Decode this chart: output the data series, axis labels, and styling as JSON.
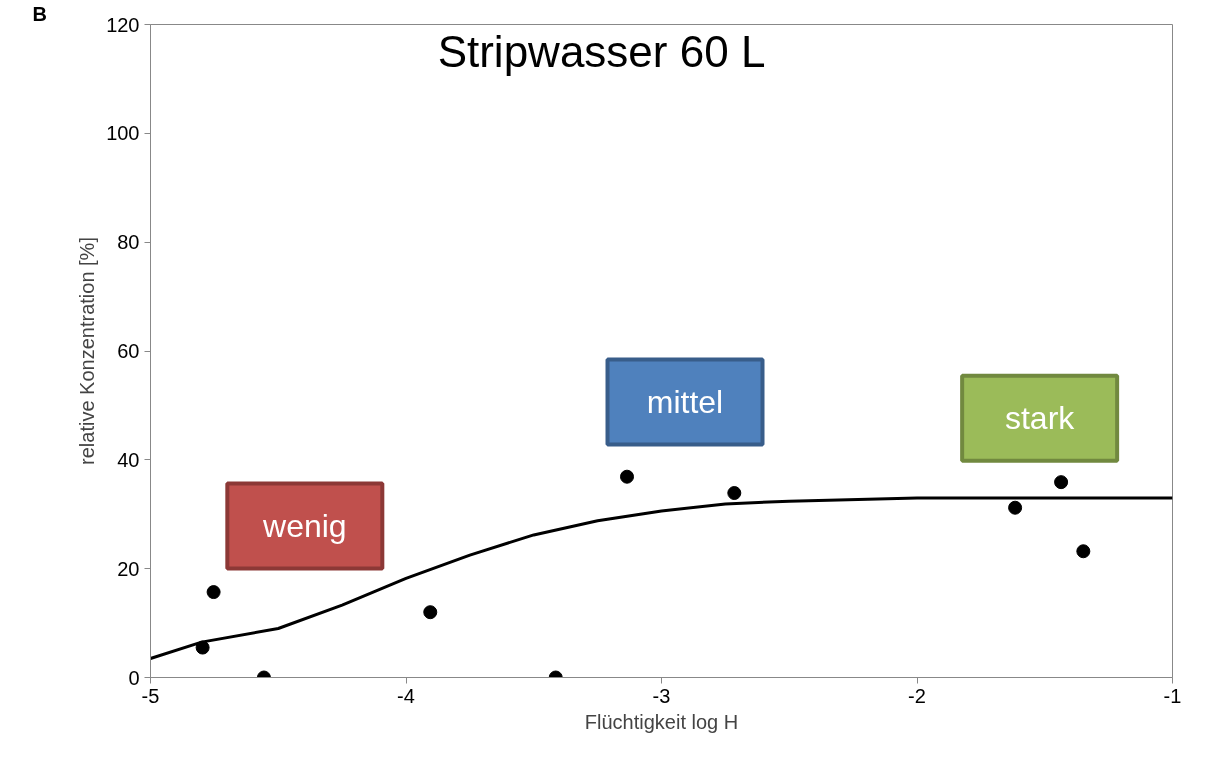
{
  "chart_data": {
    "type": "scatter",
    "title": "Stripwasser 60 L",
    "xlabel": "Flüchtigkeit log H",
    "ylabel": "relative Konzentration [%]",
    "xlim": [
      -5,
      -1
    ],
    "xticks": [
      -5,
      -4,
      -3,
      -2,
      -1
    ],
    "ylim": [
      0,
      120
    ],
    "yticks": [
      0,
      20,
      40,
      60,
      80,
      100,
      120
    ],
    "grid": false,
    "series": [
      {
        "marker": "circle",
        "color": "#000000",
        "x": [
          -4.796,
          -4.753,
          -4.556,
          -3.905,
          -3.414,
          -3.135,
          -2.715,
          -1.616,
          -1.436,
          -1.349
        ],
        "values": [
          5.5,
          15.7,
          0,
          12,
          0,
          36.9,
          33.9,
          31.2,
          35.9,
          23.2
        ]
      },
      {
        "type": "line",
        "color": "#000000",
        "line_style": "solid",
        "x": [
          -5,
          -4.8,
          -4.5,
          -4.25,
          -4.0,
          -3.75,
          -3.5,
          -3.25,
          -3.0,
          -2.75,
          -2.5,
          -2.0,
          -1.0
        ],
        "values": [
          3.5,
          6.5,
          9,
          13.3,
          18.2,
          22.5,
          26.2,
          28.8,
          30.6,
          31.9,
          32.4,
          33,
          33
        ]
      }
    ],
    "annotations": [
      "B",
      "wenig",
      "mittel",
      "stark"
    ]
  }
}
